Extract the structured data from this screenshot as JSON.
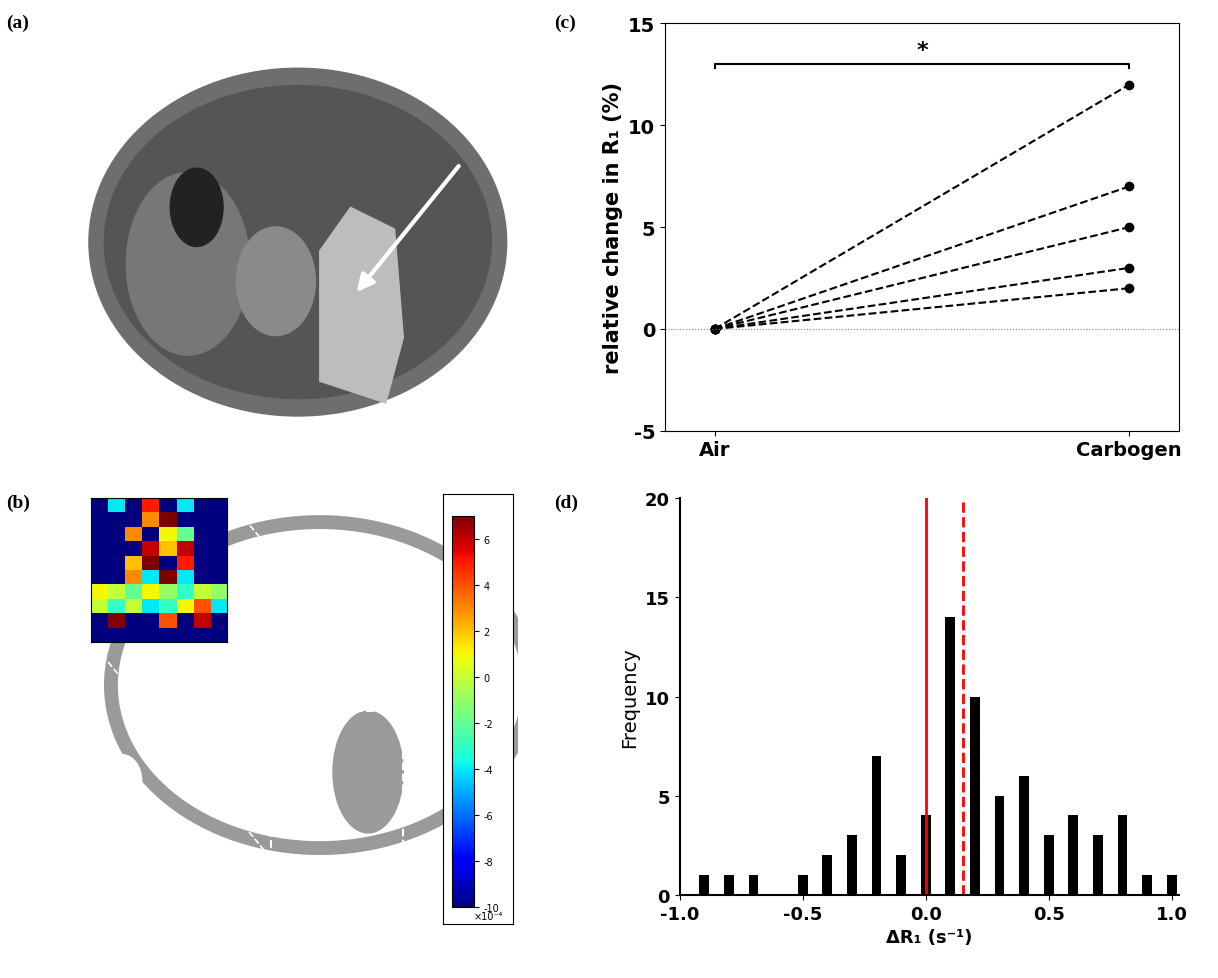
{
  "chart_data": [
    {
      "type": "image",
      "title": "(a)"
    },
    {
      "type": "heatmap",
      "title": "(b)",
      "cells": [
        [
          -10,
          -4,
          -10,
          5,
          -10,
          -4,
          -10,
          -10
        ],
        [
          -10,
          -10,
          -10,
          3,
          7,
          -10,
          -10,
          -10
        ],
        [
          -10,
          -10,
          3,
          -10,
          1,
          -2,
          -10,
          -10
        ],
        [
          -10,
          -10,
          -10,
          6,
          2,
          6,
          -10,
          -10
        ],
        [
          -10,
          -10,
          2,
          7,
          -10,
          5,
          -10,
          -10
        ],
        [
          -10,
          -10,
          3,
          -4,
          7,
          -4,
          -10,
          -10
        ],
        [
          1,
          0,
          -2,
          1,
          -1,
          -3,
          0,
          -1
        ],
        [
          0,
          -3,
          0,
          -4,
          -3,
          1,
          4,
          -4
        ],
        [
          -10,
          7,
          -10,
          -10,
          4,
          -10,
          6,
          -10
        ],
        [
          -10,
          -10,
          -10,
          -10,
          -10,
          -10,
          -10,
          -10
        ]
      ],
      "colorbar_lim": [
        -10,
        7
      ],
      "colorbar_ticks": [
        6,
        4,
        2,
        0,
        -2,
        -4,
        -6,
        -8,
        -10
      ],
      "colorbar_multiplier": "×10⁻⁴"
    },
    {
      "type": "line",
      "title": "(c)",
      "categories": [
        "Air",
        "Carbogen"
      ],
      "series": [
        {
          "values": [
            0,
            12
          ]
        },
        {
          "values": [
            0,
            7
          ]
        },
        {
          "values": [
            0,
            5
          ]
        },
        {
          "values": [
            0,
            3
          ]
        },
        {
          "values": [
            0,
            2
          ]
        }
      ],
      "color": "#000000",
      "line_style": "dashed",
      "marker": "o",
      "y_label": "relative change in R₁ (%)",
      "ylim": [
        -5,
        15
      ],
      "yticks": [
        -5,
        0,
        5,
        10,
        15
      ],
      "hline": 0,
      "annotation": "*"
    },
    {
      "type": "bar",
      "title": "(d)",
      "x": [
        -0.9,
        -0.8,
        -0.7,
        -0.6,
        -0.5,
        -0.4,
        -0.3,
        -0.2,
        -0.1,
        0.0,
        0.1,
        0.2,
        0.3,
        0.4,
        0.5,
        0.6,
        0.7,
        0.8,
        0.9,
        1.0
      ],
      "values": [
        1,
        1,
        1,
        0,
        1,
        2,
        3,
        7,
        2,
        4,
        14,
        10,
        5,
        6,
        3,
        4,
        3,
        4,
        1,
        1
      ],
      "color": "#000000",
      "x_label": "ΔR₁ (s⁻¹)",
      "y_label": "Frequency",
      "xlim": [
        -1.0,
        1.03
      ],
      "xticks": [
        {
          "value": -1.0,
          "label": "-1.0"
        },
        {
          "value": -0.5,
          "label": "-0.5"
        },
        {
          "value": 0.0,
          "label": "0.0"
        },
        {
          "value": 0.5,
          "label": "0.5"
        },
        {
          "value": 1.0,
          "label": "1.0"
        }
      ],
      "ylim": [
        0,
        20
      ],
      "yticks": [
        0,
        5,
        10,
        15,
        20
      ],
      "vlines": [
        {
          "x": 0,
          "color": "#ff0000",
          "line_style": "solid"
        },
        {
          "x": 0.15,
          "color": "#ff0000",
          "line_style": "dashed"
        }
      ]
    }
  ]
}
